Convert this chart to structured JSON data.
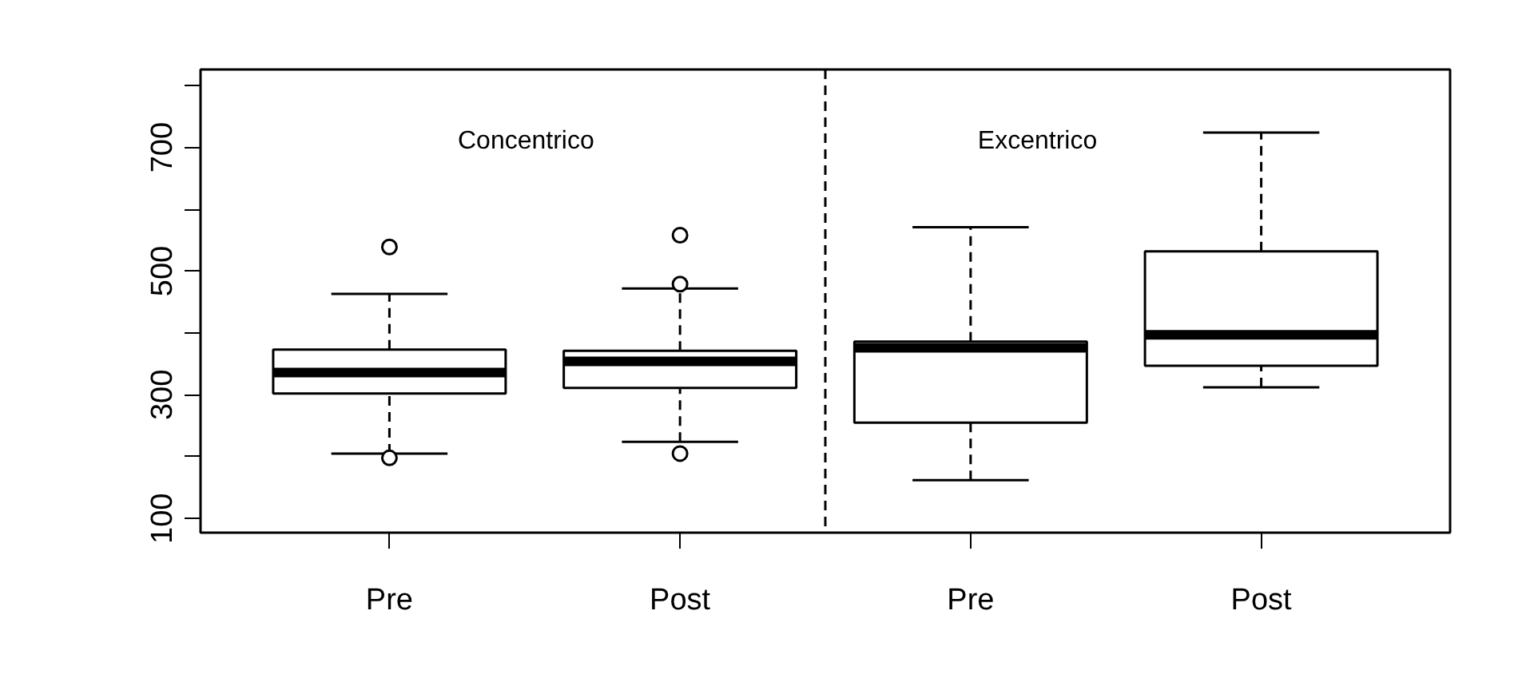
{
  "chart_data": {
    "type": "box",
    "categories": [
      "Pre",
      "Post",
      "Pre",
      "Post"
    ],
    "boxes": [
      {
        "low": 205,
        "q1": 302,
        "median": 336,
        "q3": 373,
        "high": 463,
        "outliers": [
          539,
          198
        ]
      },
      {
        "low": 224,
        "q1": 311,
        "median": 354,
        "q3": 371,
        "high": 472,
        "outliers": [
          558,
          479,
          205
        ]
      },
      {
        "low": 162,
        "q1": 255,
        "median": 376,
        "q3": 386,
        "high": 571
      },
      {
        "low": 312,
        "q1": 347,
        "median": 397,
        "q3": 532,
        "high": 724
      }
    ],
    "ylim": [
      77,
      826
    ],
    "yticks": [
      100,
      {
        "value": 200,
        "label": null
      },
      300,
      {
        "value": 400,
        "label": null
      },
      500,
      {
        "value": 600,
        "label": null
      },
      700,
      {
        "value": 800,
        "label": null
      }
    ],
    "annotations": [
      "Concentrico",
      "Excentrico"
    ],
    "grid": false
  }
}
